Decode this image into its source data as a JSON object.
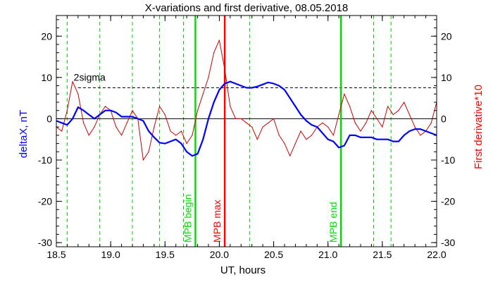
{
  "chart_data": {
    "type": "line",
    "title": "X-variations and first derivative, 08.05.2018",
    "xlabel": "UT, hours",
    "ylabel_left": "deltaX, nT",
    "ylabel_right": "First derivative*10",
    "xlim": [
      18.5,
      22.0
    ],
    "ylim": [
      -31,
      25
    ],
    "xticks": [
      "18.5",
      "19.0",
      "19.5",
      "20.0",
      "20.5",
      "21.0",
      "21.5",
      "22.0"
    ],
    "xtick_values": [
      18.5,
      19.0,
      19.5,
      20.0,
      20.5,
      21.0,
      21.5,
      22.0
    ],
    "yticks": [
      "-30",
      "-20",
      "-10",
      "0",
      "10",
      "20"
    ],
    "ytick_values": [
      -30,
      -20,
      -10,
      0,
      10,
      20
    ],
    "colors": {
      "deltaX": "#0000ff",
      "derivative": "#cc0000",
      "dashed_markers": "#00cc00",
      "mpb_begin": "#00dd00",
      "mpb_end": "#00dd00",
      "mpb_max": "#ff0000",
      "left_axis_label": "#0000ff",
      "right_axis_label": "#ff0000"
    },
    "sigma_line": {
      "label": "2sigma",
      "value": 7.5
    },
    "zero_line": 0,
    "dashed_verticals": [
      18.6,
      18.9,
      19.2,
      19.45,
      19.67,
      20.28,
      21.42,
      21.58
    ],
    "events": [
      {
        "label": "MPB begin",
        "x": 19.78
      },
      {
        "label": "MPB max",
        "x": 20.05
      },
      {
        "label": "MPB end",
        "x": 21.12
      }
    ],
    "series": [
      {
        "name": "deltaX, nT",
        "x": [
          18.5,
          18.55,
          18.6,
          18.65,
          18.7,
          18.75,
          18.8,
          18.85,
          18.9,
          18.95,
          19.0,
          19.05,
          19.1,
          19.15,
          19.2,
          19.25,
          19.3,
          19.35,
          19.4,
          19.45,
          19.5,
          19.55,
          19.6,
          19.65,
          19.7,
          19.75,
          19.8,
          19.85,
          19.9,
          19.95,
          20.0,
          20.05,
          20.1,
          20.15,
          20.2,
          20.25,
          20.3,
          20.35,
          20.4,
          20.45,
          20.5,
          20.55,
          20.6,
          20.65,
          20.7,
          20.75,
          20.8,
          20.85,
          20.9,
          20.95,
          21.0,
          21.05,
          21.1,
          21.15,
          21.2,
          21.25,
          21.3,
          21.35,
          21.4,
          21.45,
          21.5,
          21.55,
          21.6,
          21.65,
          21.7,
          21.75,
          21.8,
          21.85,
          21.9,
          21.95,
          22.0
        ],
        "values": [
          -0.5,
          -1,
          -1.5,
          0,
          2.8,
          2,
          1,
          0,
          1,
          2,
          2,
          1.5,
          0.5,
          0.5,
          0.5,
          0,
          -0.5,
          -3,
          -4.5,
          -5.8,
          -6,
          -5.5,
          -5,
          -6,
          -8,
          -9,
          -8.5,
          -5,
          0,
          4,
          7,
          8.5,
          9,
          8.5,
          8,
          7.5,
          7.5,
          7.8,
          8.3,
          8.8,
          8.5,
          8,
          7,
          5,
          3,
          1,
          -0.5,
          -1.5,
          -2,
          -3.5,
          -5,
          -5.5,
          -7,
          -6.5,
          -4,
          -4,
          -4.5,
          -4.5,
          -4.5,
          -5,
          -5,
          -5,
          -5.5,
          -5.5,
          -4,
          -3,
          -2.5,
          -2.5,
          -3,
          -3.5,
          -4
        ]
      },
      {
        "name": "First derivative*10",
        "x": [
          18.5,
          18.55,
          18.6,
          18.65,
          18.7,
          18.75,
          18.8,
          18.85,
          18.9,
          18.95,
          19.0,
          19.05,
          19.1,
          19.15,
          19.2,
          19.25,
          19.3,
          19.35,
          19.4,
          19.45,
          19.5,
          19.55,
          19.6,
          19.65,
          19.7,
          19.75,
          19.8,
          19.85,
          19.9,
          19.95,
          20.0,
          20.05,
          20.1,
          20.15,
          20.2,
          20.25,
          20.3,
          20.35,
          20.4,
          20.45,
          20.5,
          20.55,
          20.6,
          20.65,
          20.7,
          20.75,
          20.8,
          20.85,
          20.9,
          20.95,
          21.0,
          21.05,
          21.1,
          21.15,
          21.2,
          21.25,
          21.3,
          21.35,
          21.4,
          21.45,
          21.5,
          21.55,
          21.6,
          21.65,
          21.7,
          21.75,
          21.8,
          21.85,
          21.9,
          21.95,
          22.0
        ],
        "values": [
          -2,
          -3,
          2,
          9,
          6,
          -1,
          -4,
          -2,
          1,
          3,
          2,
          -2,
          -4,
          -1,
          2,
          0,
          -10,
          -8,
          -2,
          3,
          1,
          -3,
          -4,
          -3,
          -6,
          -4,
          2,
          6,
          10,
          16,
          19,
          12,
          3,
          0,
          0,
          -1,
          -2,
          -5,
          -2,
          -1,
          0,
          -4,
          -6,
          -9,
          -6,
          -3,
          -5,
          -4,
          -2,
          -1,
          -2,
          -4,
          1,
          6,
          3,
          -1,
          -3,
          -1,
          2,
          0,
          -2,
          3,
          1,
          2,
          4,
          1,
          -2,
          -4,
          -3,
          -1,
          4
        ]
      }
    ]
  }
}
